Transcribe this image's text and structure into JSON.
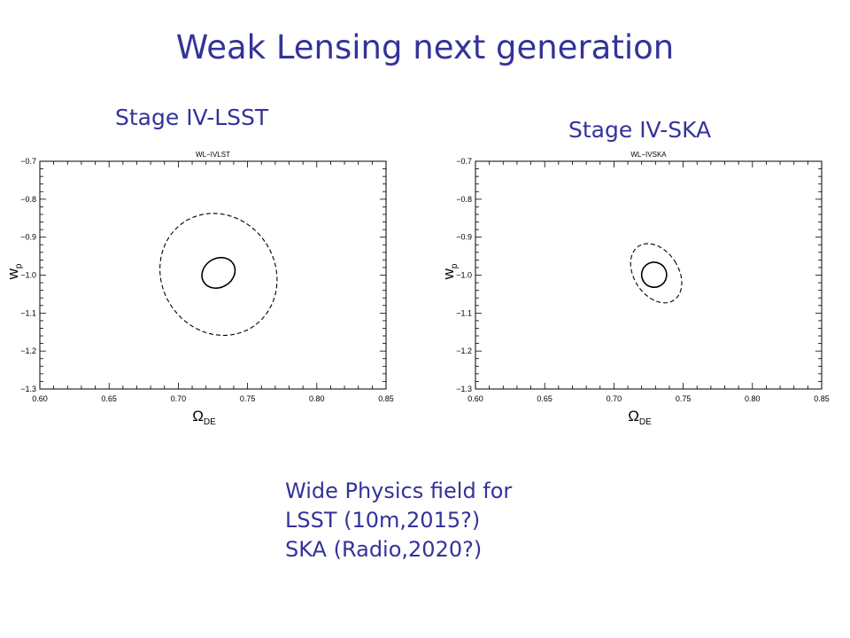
{
  "slide": {
    "title": "Weak Lensing next generation",
    "caption": [
      "Wide Physics field for",
      "LSST (10m,2015?)",
      "SKA (Radio,2020?)"
    ]
  },
  "colors": {
    "text_accent": "#333399",
    "plot_ink": "#000000"
  },
  "chart_data": [
    {
      "type": "scatter",
      "panel_label": "Stage IV-LSST",
      "title": "WL−IVLST",
      "xlabel": "Ω",
      "xlabel_sub": "DE",
      "ylabel": "w",
      "ylabel_sub": "p",
      "xlim": [
        0.6,
        0.85
      ],
      "ylim": [
        -1.3,
        -0.7
      ],
      "xticks": [
        0.6,
        0.65,
        0.7,
        0.75,
        0.8,
        0.85
      ],
      "xtick_labels": [
        "0.60",
        "0.65",
        "0.70",
        "0.75",
        "0.80",
        "0.85"
      ],
      "yticks": [
        -0.7,
        -0.8,
        -0.9,
        -1.0,
        -1.1,
        -1.2,
        -1.3
      ],
      "ytick_labels": [
        "−0.7",
        "−0.8",
        "−0.9",
        "−1.0",
        "−1.1",
        "−1.2",
        "−1.3"
      ],
      "grid": false,
      "contours": [
        {
          "style": "solid",
          "center": [
            0.729,
            -0.994
          ],
          "semi_axes": [
            0.0125,
            0.038
          ],
          "tilt_deg": -32
        },
        {
          "style": "dashed",
          "center": [
            0.729,
            -0.998
          ],
          "semi_axes": [
            0.041,
            0.165
          ],
          "tilt_deg": -33
        }
      ]
    },
    {
      "type": "scatter",
      "panel_label": "Stage IV-SKA",
      "title": "WL−IVSKA",
      "xlabel": "Ω",
      "xlabel_sub": "DE",
      "ylabel": "w",
      "ylabel_sub": "p",
      "xlim": [
        0.6,
        0.85
      ],
      "ylim": [
        -1.3,
        -0.7
      ],
      "xticks": [
        0.6,
        0.65,
        0.7,
        0.75,
        0.8,
        0.85
      ],
      "xtick_labels": [
        "0.60",
        "0.65",
        "0.70",
        "0.75",
        "0.80",
        "0.85"
      ],
      "yticks": [
        -0.7,
        -0.8,
        -0.9,
        -1.0,
        -1.1,
        -1.2,
        -1.3
      ],
      "ytick_labels": [
        "−0.7",
        "−0.8",
        "−0.9",
        "−1.0",
        "−1.1",
        "−1.2",
        "−1.3"
      ],
      "grid": false,
      "contours": [
        {
          "style": "solid",
          "center": [
            0.729,
            -0.999
          ],
          "semi_axes": [
            0.009,
            0.033
          ],
          "tilt_deg": -32
        },
        {
          "style": "dashed",
          "center": [
            0.7305,
            -0.995
          ],
          "semi_axes": [
            0.016,
            0.085
          ],
          "tilt_deg": -33
        }
      ]
    }
  ]
}
